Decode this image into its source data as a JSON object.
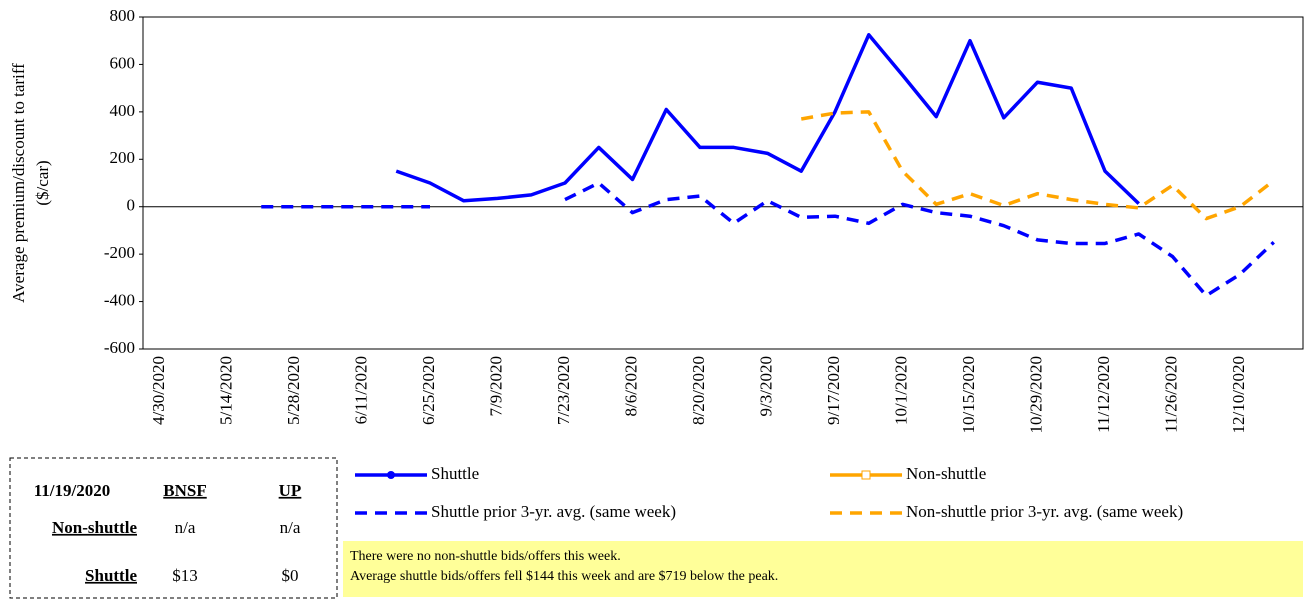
{
  "chart_data": {
    "type": "line",
    "ylabel": [
      "Average premium/discount to tariff",
      "($/car)"
    ],
    "categories": [
      "4/30/2020",
      null,
      "5/14/2020",
      null,
      "5/28/2020",
      null,
      "6/11/2020",
      null,
      "6/25/2020",
      null,
      "7/9/2020",
      null,
      "7/23/2020",
      null,
      "8/6/2020",
      null,
      "8/20/2020",
      null,
      "9/3/2020",
      null,
      "9/17/2020",
      null,
      "10/1/2020",
      null,
      "10/15/2020",
      null,
      "10/29/2020",
      null,
      "11/12/2020",
      null,
      "11/26/2020",
      null,
      "12/10/2020",
      null
    ],
    "series": [
      {
        "name": "Shuttle",
        "color": "#0000ff",
        "dash": false,
        "marker": true,
        "values": [
          null,
          null,
          null,
          null,
          null,
          null,
          null,
          150,
          100,
          25,
          35,
          50,
          100,
          250,
          115,
          410,
          250,
          250,
          225,
          150,
          400,
          725,
          555,
          380,
          700,
          375,
          525,
          500,
          150,
          13,
          null,
          null,
          null,
          null
        ]
      },
      {
        "name": "Non-shuttle",
        "color": "#ffa500",
        "dash": false,
        "marker": true,
        "values": [
          null,
          null,
          null,
          null,
          null,
          null,
          null,
          null,
          null,
          null,
          null,
          null,
          null,
          null,
          null,
          null,
          null,
          null,
          null,
          null,
          null,
          null,
          null,
          null,
          null,
          null,
          null,
          null,
          null,
          null,
          null,
          null,
          null,
          null
        ]
      },
      {
        "name": "Shuttle prior 3-yr. avg. (same week)",
        "color": "#0000ff",
        "dash": true,
        "marker": false,
        "values": [
          null,
          null,
          null,
          0,
          0,
          0,
          0,
          0,
          0,
          null,
          null,
          null,
          30,
          100,
          -25,
          30,
          45,
          -70,
          25,
          -45,
          -40,
          -70,
          10,
          -25,
          -40,
          -80,
          -140,
          -155,
          -155,
          -115,
          -210,
          -375,
          -285,
          -150
        ]
      },
      {
        "name": "Non-shuttle prior 3-yr. avg. (same week)",
        "color": "#ffa500",
        "dash": true,
        "marker": false,
        "values": [
          null,
          null,
          null,
          null,
          null,
          null,
          null,
          null,
          null,
          null,
          null,
          null,
          null,
          null,
          null,
          null,
          null,
          null,
          null,
          370,
          395,
          400,
          150,
          10,
          55,
          5,
          55,
          30,
          10,
          -5,
          90,
          -50,
          0,
          110
        ]
      }
    ],
    "ylim": [
      -600,
      800
    ],
    "yticks": [
      -600,
      -400,
      -200,
      0,
      200,
      400,
      600,
      800
    ],
    "grid": false
  },
  "table": {
    "header": [
      "11/19/2020",
      "BNSF",
      "UP"
    ],
    "rows": [
      [
        "Non-shuttle",
        "n/a",
        "n/a"
      ],
      [
        "Shuttle",
        "$13",
        "$0"
      ]
    ]
  },
  "note": [
    "There were no non-shuttle bids/offers  this week.",
    "Average shuttle bids/offers  fell  $144 this week and are $719 below the peak."
  ]
}
